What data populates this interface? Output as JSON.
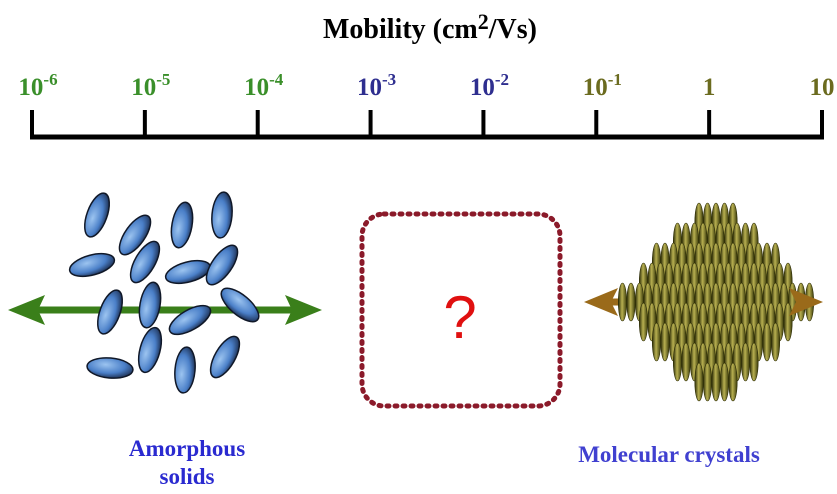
{
  "title": {
    "text": "Mobility (cm",
    "superscript": "2",
    "text_after": "/Vs)"
  },
  "scale": {
    "ticks": [
      {
        "base": "10",
        "exponent": "-6",
        "color": "#3a8f2a"
      },
      {
        "base": "10",
        "exponent": "-5",
        "color": "#3a8f2a"
      },
      {
        "base": "10",
        "exponent": "-4",
        "color": "#3a8f2a"
      },
      {
        "base": "10",
        "exponent": "-3",
        "color": "#2e2e8f"
      },
      {
        "base": "10",
        "exponent": "-2",
        "color": "#2e2e8f"
      },
      {
        "base": "10",
        "exponent": "-1",
        "color": "#6b6b1f"
      },
      {
        "base": "1",
        "color": "#6b6b1f"
      },
      {
        "base": "10",
        "color": "#6b6b1f"
      }
    ]
  },
  "panels": {
    "amorphous": {
      "label_lines": [
        "Amorphous",
        "solids"
      ]
    },
    "unknown": {
      "symbol": "?"
    },
    "crystal": {
      "label": "Molecular crystals"
    }
  }
}
